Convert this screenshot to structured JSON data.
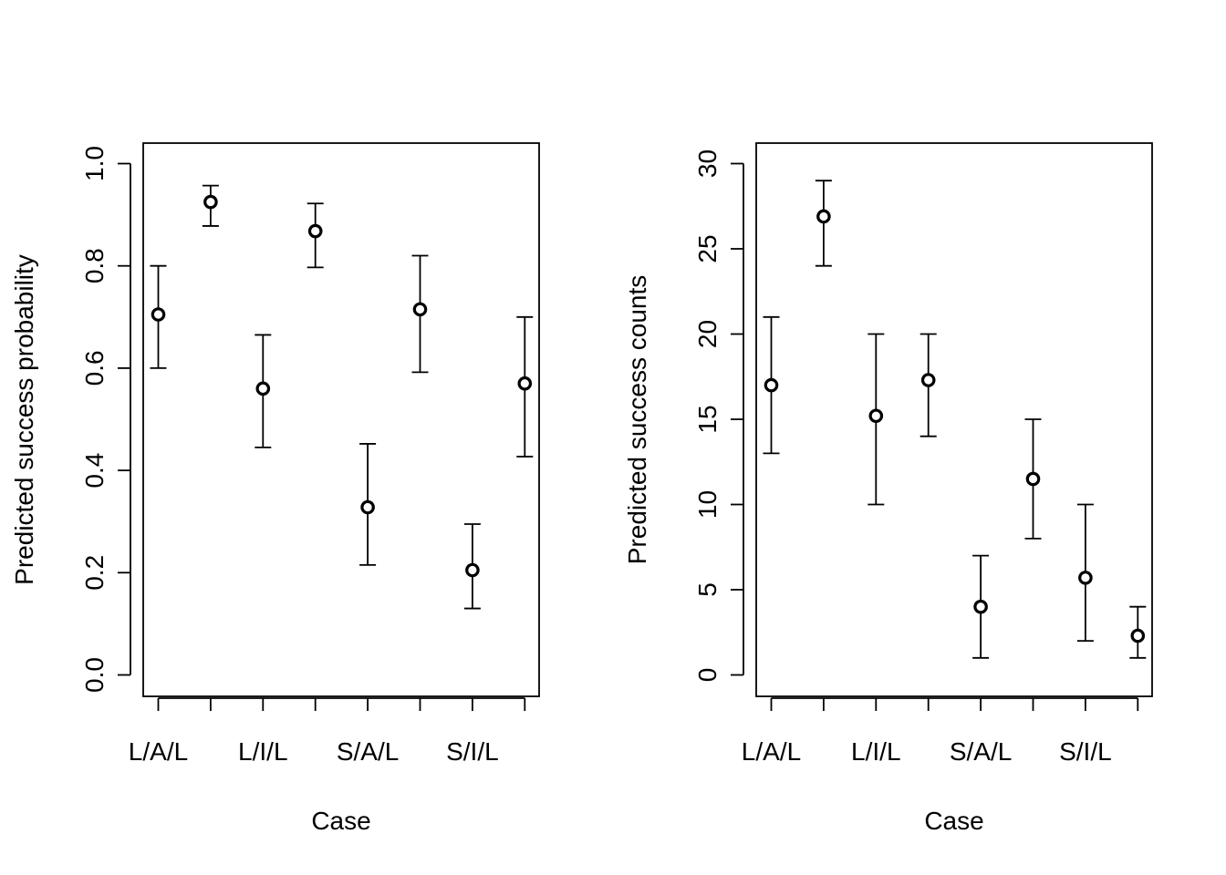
{
  "chart_data": [
    {
      "type": "scatter",
      "title": "",
      "xlabel": "Case",
      "ylabel": "Predicted success probability",
      "ylim": [
        0,
        1
      ],
      "yticks": [
        "0.0",
        "0.2",
        "0.4",
        "0.6",
        "0.8",
        "1.0"
      ],
      "categories": [
        "L/A/L",
        "",
        "L/I/L",
        "",
        "S/A/L",
        "",
        "S/I/L",
        ""
      ],
      "values": [
        0.705,
        0.925,
        0.56,
        0.868,
        0.328,
        0.715,
        0.205,
        0.57
      ],
      "lower": [
        0.6,
        0.878,
        0.445,
        0.797,
        0.215,
        0.592,
        0.13,
        0.427
      ],
      "upper": [
        0.8,
        0.957,
        0.665,
        0.922,
        0.452,
        0.82,
        0.295,
        0.7
      ],
      "grid": false,
      "legend": "none"
    },
    {
      "type": "scatter",
      "title": "",
      "xlabel": "Case",
      "ylabel": "Predicted success counts",
      "ylim": [
        0,
        30
      ],
      "yticks": [
        "0",
        "5",
        "10",
        "15",
        "20",
        "25",
        "30"
      ],
      "categories": [
        "L/A/L",
        "",
        "L/I/L",
        "",
        "S/A/L",
        "",
        "S/I/L",
        ""
      ],
      "values": [
        17,
        26.9,
        15.2,
        17.3,
        4,
        11.5,
        5.7,
        2.3
      ],
      "lower": [
        13,
        24,
        10,
        14,
        1,
        8,
        2,
        1
      ],
      "upper": [
        21,
        29,
        20,
        20,
        7,
        15,
        10,
        4
      ],
      "grid": false,
      "legend": "none"
    }
  ]
}
